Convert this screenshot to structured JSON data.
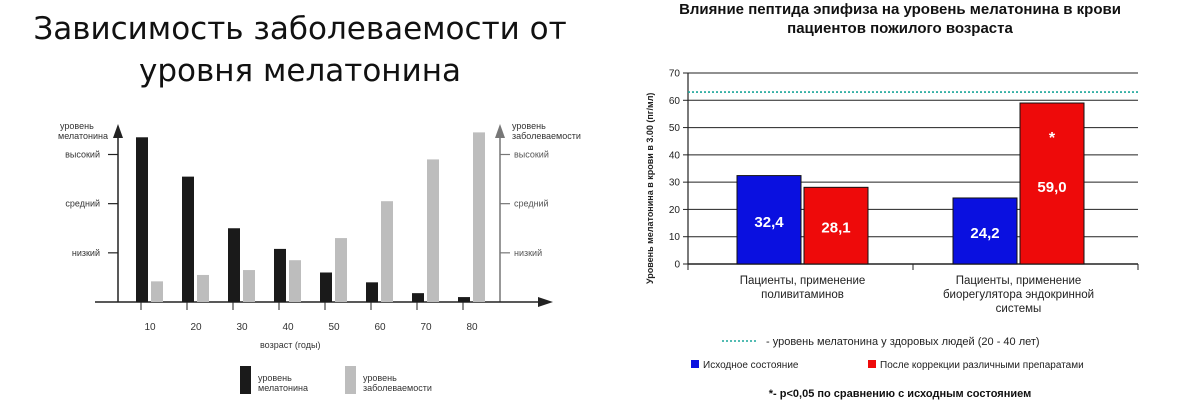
{
  "chart_data": [
    {
      "type": "bar",
      "title": "Зависимость заболеваемости от уровня мелатонина",
      "title_lines": [
        "Зависимость заболеваемости от",
        "уровня мелатонина"
      ],
      "xlabel": "возраст (годы)",
      "ylabel_left": [
        "уровень",
        "мелатонина"
      ],
      "ylabel_right": [
        "уровень",
        "заболеваемости"
      ],
      "y_levels": [
        "низкий",
        "средний",
        "высокий"
      ],
      "y_levels_right": [
        "низкий",
        "средний",
        "высокий"
      ],
      "categories": [
        "10",
        "20",
        "30",
        "40",
        "50",
        "60",
        "70",
        "80"
      ],
      "ylim": [
        0,
        3.6
      ],
      "series": [
        {
          "name": "уровень мелатонина",
          "name_lines": [
            "уровень",
            "мелатонина"
          ],
          "color": "#1a1a1a",
          "values": [
            3.35,
            2.55,
            1.5,
            1.08,
            0.6,
            0.4,
            0.18,
            0.1
          ]
        },
        {
          "name": "уровень заболеваемости",
          "name_lines": [
            "уровень",
            "заболеваемости"
          ],
          "color": "#bdbdbd",
          "values": [
            0.42,
            0.55,
            0.65,
            0.85,
            1.3,
            2.05,
            2.9,
            3.45
          ]
        }
      ],
      "legend_position": "bottom"
    },
    {
      "type": "bar",
      "title": "Влияние пептида эпифиза на уровень мелатонина в крови пациентов пожилого возраста",
      "title_lines": [
        "Влияние пептида эпифиза на уровень мелатонина в крови",
        "пациентов пожилого возраста"
      ],
      "ylabel": "Уровень мелатонина в крови в 3.00 (пг/мл)",
      "ylim": [
        0,
        70
      ],
      "yticks": [
        "0",
        "10",
        "20",
        "30",
        "40",
        "50",
        "60",
        "70"
      ],
      "grid": true,
      "categories": [
        {
          "label_lines": [
            "Пациенты, применение",
            "поливитаминов"
          ]
        },
        {
          "label_lines": [
            "Пациенты, применение",
            "биорегулятора эндокринной",
            "системы"
          ]
        }
      ],
      "reference_line": {
        "value": 63,
        "color": "#1aa59a",
        "label": "- уровень мелатонина у здоровых людей (20 - 40 лет)"
      },
      "series": [
        {
          "name": "Исходное состояние",
          "color": "#0a10e0",
          "values": [
            32.4,
            24.2
          ],
          "labels": [
            "32,4",
            "24,2"
          ]
        },
        {
          "name": "После коррекции различными препаратами",
          "color": "#ee0a0a",
          "values": [
            28.1,
            59.0
          ],
          "labels": [
            "28,1",
            "59,0"
          ]
        }
      ],
      "annotation": "*",
      "footnote": "*- p<0,05 по сравнению с исходным состоянием",
      "legend_position": "bottom"
    }
  ]
}
